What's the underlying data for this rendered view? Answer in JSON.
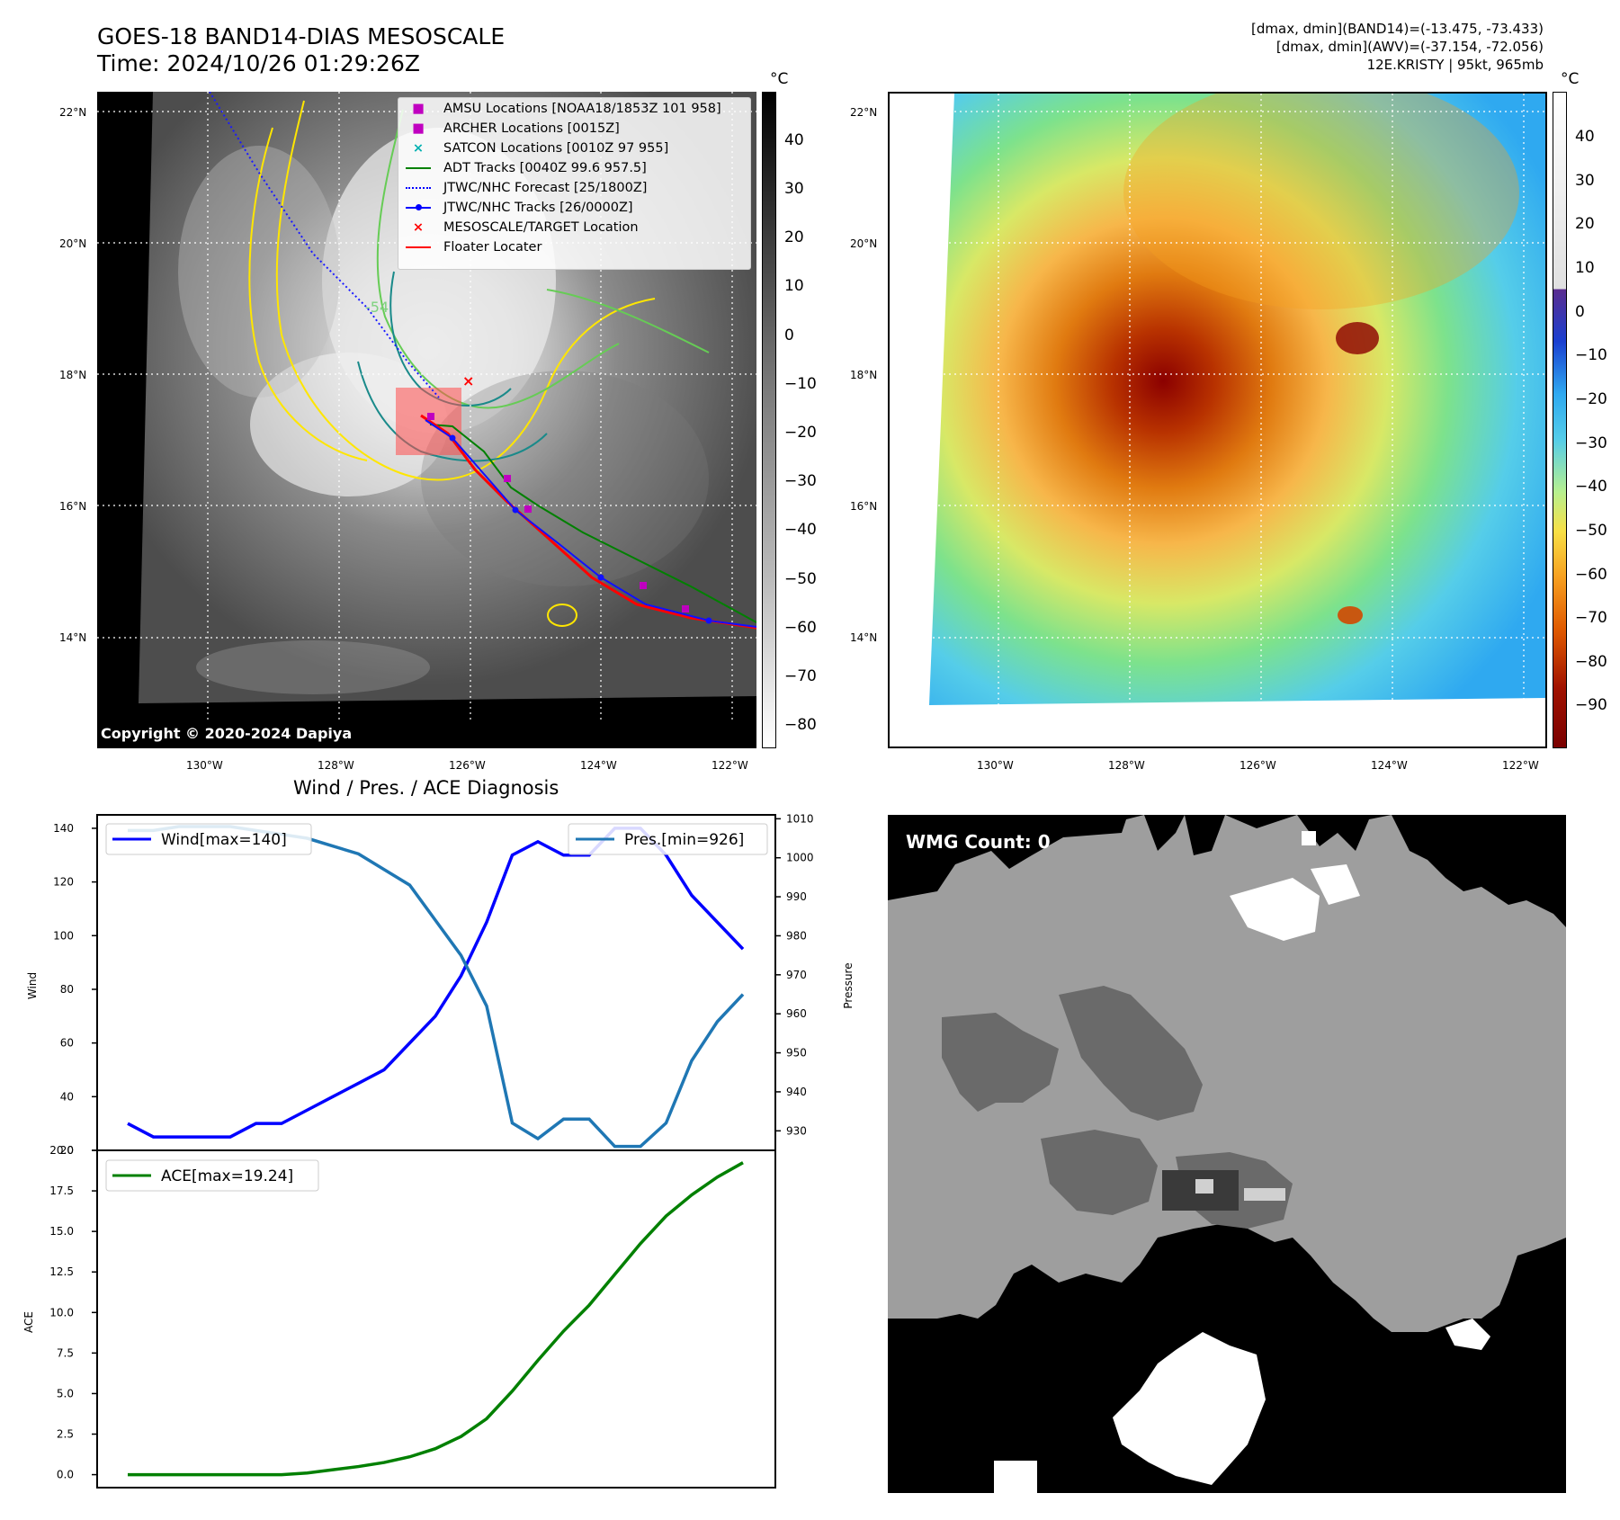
{
  "header": {
    "title_line1": "GOES-18 BAND14-DIAS MESOSCALE",
    "title_line2": "Time: 2024/10/26 01:29:26Z",
    "meta_line1": "[dmax, dmin](BAND14)=(-13.475, -73.433)",
    "meta_line2": "[dmax, dmin](AWV)=(-37.154, -72.056)",
    "meta_line3": "12E.KRISTY | 95kt, 965mb"
  },
  "map_panel": {
    "lat_labels": [
      "22°N",
      "20°N",
      "18°N",
      "16°N",
      "14°N"
    ],
    "lon_labels": [
      "130°W",
      "128°W",
      "126°W",
      "124°W",
      "122°W"
    ],
    "copyright": "Copyright © 2020-2024 Dapiya",
    "contour_label": "-54",
    "legend": [
      {
        "label": "AMSU Locations [NOAA18/1853Z 101 958]",
        "symbol": "square",
        "color": "#c000c0"
      },
      {
        "label": "ARCHER Locations [0015Z]",
        "symbol": "square",
        "color": "#c000c0"
      },
      {
        "label": "SATCON Locations [0010Z 97 955]",
        "symbol": "x",
        "color": "#00b0b0"
      },
      {
        "label": "ADT Tracks [0040Z 99.6 957.5]",
        "symbol": "line",
        "color": "#008000"
      },
      {
        "label": "JTWC/NHC Forecast [25/1800Z]",
        "symbol": "dotted",
        "color": "#0000ff"
      },
      {
        "label": "JTWC/NHC Tracks [26/0000Z]",
        "symbol": "line-dot",
        "color": "#0000ff"
      },
      {
        "label": "MESOSCALE/TARGET Location",
        "symbol": "x",
        "color": "#ff0000"
      },
      {
        "label": "Floater Locater",
        "symbol": "line",
        "color": "#ff0000"
      }
    ],
    "colorbar": {
      "unit": "°C",
      "ticks": [
        "40",
        "30",
        "20",
        "10",
        "0",
        "−10",
        "−20",
        "−30",
        "−40",
        "−50",
        "−60",
        "−70",
        "−80"
      ]
    }
  },
  "wv_panel": {
    "lat_labels": [
      "22°N",
      "20°N",
      "18°N",
      "16°N",
      "14°N"
    ],
    "lon_labels": [
      "130°W",
      "128°W",
      "126°W",
      "124°W",
      "122°W"
    ],
    "colorbar": {
      "unit": "°C",
      "ticks": [
        "40",
        "30",
        "20",
        "10",
        "0",
        "−10",
        "−20",
        "−30",
        "−40",
        "−50",
        "−60",
        "−70",
        "−80",
        "−90"
      ]
    }
  },
  "diag_panel": {
    "title": "Wind / Pres. / ACE Diagnosis"
  },
  "wmg_panel": {
    "label": "WMG Count: 0"
  },
  "chart_data": [
    {
      "type": "line",
      "title": "Wind / Pres. / ACE Diagnosis",
      "xlabel": "",
      "ylabel": "Wind",
      "ylabel_right": "Pressure",
      "ylim": [
        20,
        145
      ],
      "ylim_right": [
        925,
        1011
      ],
      "yticks": [
        "20",
        "40",
        "60",
        "80",
        "100",
        "120",
        "140"
      ],
      "yticks_right": [
        "930",
        "940",
        "950",
        "960",
        "970",
        "980",
        "990",
        "1000",
        "1010"
      ],
      "series": [
        {
          "name": "Wind[max=140]",
          "axis": "left",
          "color": "#0000ff",
          "values": [
            30,
            25,
            25,
            25,
            25,
            30,
            30,
            35,
            40,
            45,
            50,
            60,
            70,
            85,
            105,
            130,
            135,
            130,
            130,
            140,
            140,
            130,
            115,
            105,
            95
          ]
        },
        {
          "name": "Pres.[min=926]",
          "axis": "right",
          "color": "#1f77b4",
          "values": [
            1007,
            1007,
            1008,
            1008,
            1008,
            1007,
            1006,
            1005,
            1003,
            1001,
            997,
            993,
            984,
            975,
            962,
            932,
            928,
            933,
            933,
            926,
            926,
            932,
            948,
            958,
            965
          ]
        }
      ]
    },
    {
      "type": "line",
      "title": "",
      "xlabel": "",
      "ylabel": "ACE",
      "ylim": [
        -0.8,
        20.0
      ],
      "yticks": [
        "0.0",
        "2.5",
        "5.0",
        "7.5",
        "10.0",
        "12.5",
        "15.0",
        "17.5",
        "20.0"
      ],
      "series": [
        {
          "name": "ACE[max=19.24]",
          "color": "#008000",
          "values": [
            0,
            0,
            0,
            0,
            0,
            0,
            0,
            0.1,
            0.3,
            0.5,
            0.75,
            1.1,
            1.6,
            2.35,
            3.45,
            5.15,
            7.05,
            8.85,
            10.45,
            12.35,
            14.25,
            15.95,
            17.25,
            18.35,
            19.24
          ]
        }
      ]
    }
  ]
}
